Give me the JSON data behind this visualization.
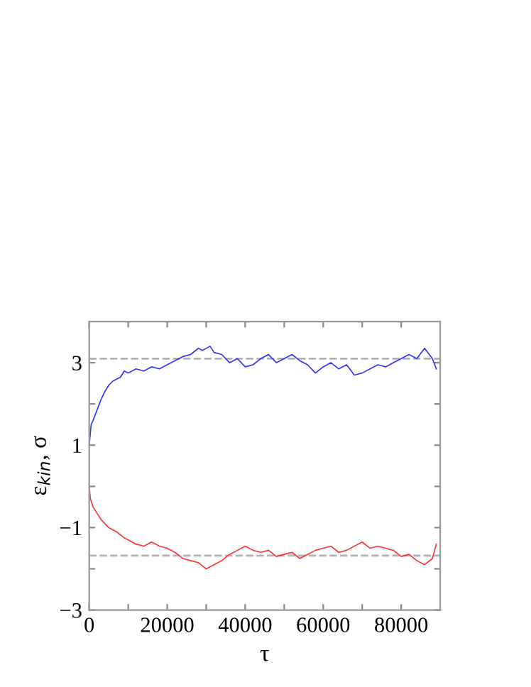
{
  "chart_data": {
    "type": "line",
    "xlabel": "τ",
    "ylabel": "ε$_{kin}$, σ",
    "xlim": [
      0,
      90000
    ],
    "ylim": [
      -3,
      4
    ],
    "xticks": [
      0,
      {
        "value": 10000,
        "label": null
      },
      20000,
      {
        "value": 30000,
        "label": null
      },
      40000,
      {
        "value": 50000,
        "label": null
      },
      60000,
      {
        "value": 70000,
        "label": null
      },
      80000
    ],
    "yticks": [
      {
        "value": -3,
        "label": "−3"
      },
      {
        "value": -2,
        "label": null
      },
      {
        "value": -1,
        "label": "−1"
      },
      {
        "value": 0,
        "label": null
      },
      1,
      {
        "value": 2,
        "label": null
      },
      3
    ],
    "grid": false,
    "line_style": "solid",
    "marker": "none",
    "ref_lines": [
      {
        "axis": "y",
        "value": 3.1,
        "color": "#b0b0b0",
        "line_style": "dashed"
      },
      {
        "axis": "y",
        "value": -1.68,
        "color": "#b0b0b0",
        "line_style": "dashed"
      }
    ],
    "series": [
      {
        "color": "#3333ff",
        "x": [
          0,
          500,
          1000,
          2000,
          3000,
          4000,
          5000,
          6000,
          7000,
          8000,
          9000,
          10000,
          12000,
          14000,
          16000,
          18000,
          20000,
          22000,
          24000,
          26000,
          28000,
          29000,
          31000,
          32000,
          34000,
          36000,
          38000,
          40000,
          42000,
          44000,
          46000,
          48000,
          50000,
          52000,
          54000,
          56000,
          58000,
          60000,
          62000,
          64000,
          66000,
          68000,
          70000,
          72000,
          74000,
          76000,
          78000,
          80000,
          82000,
          84000,
          86000,
          88000,
          89000
        ],
        "values": [
          1.0,
          1.5,
          1.6,
          1.85,
          2.1,
          2.3,
          2.45,
          2.55,
          2.6,
          2.65,
          2.8,
          2.75,
          2.85,
          2.8,
          2.9,
          2.85,
          2.95,
          3.05,
          3.15,
          3.2,
          3.35,
          3.3,
          3.4,
          3.25,
          3.2,
          3.0,
          3.1,
          2.9,
          2.95,
          3.1,
          3.2,
          3.0,
          3.1,
          3.2,
          3.05,
          2.95,
          2.75,
          2.9,
          3.0,
          2.85,
          2.95,
          2.7,
          2.75,
          2.85,
          2.95,
          2.9,
          3.0,
          3.1,
          3.2,
          3.1,
          3.35,
          3.1,
          2.85
        ]
      },
      {
        "color": "#ff3333",
        "x": [
          0,
          300,
          1000,
          2000,
          3000,
          4000,
          5000,
          7000,
          9000,
          10000,
          12000,
          14000,
          16000,
          18000,
          20000,
          22000,
          24000,
          26000,
          28000,
          30000,
          32000,
          34000,
          36000,
          38000,
          40000,
          42000,
          44000,
          46000,
          48000,
          50000,
          52000,
          54000,
          56000,
          58000,
          60000,
          62000,
          64000,
          66000,
          68000,
          70000,
          72000,
          74000,
          76000,
          78000,
          80000,
          82000,
          84000,
          86000,
          88000,
          89000
        ],
        "values": [
          0.0,
          -0.3,
          -0.5,
          -0.65,
          -0.8,
          -0.9,
          -1.0,
          -1.1,
          -1.25,
          -1.3,
          -1.4,
          -1.45,
          -1.35,
          -1.45,
          -1.5,
          -1.6,
          -1.75,
          -1.8,
          -1.85,
          -2.0,
          -1.9,
          -1.8,
          -1.65,
          -1.55,
          -1.45,
          -1.55,
          -1.6,
          -1.55,
          -1.7,
          -1.65,
          -1.6,
          -1.75,
          -1.65,
          -1.55,
          -1.5,
          -1.45,
          -1.6,
          -1.55,
          -1.45,
          -1.35,
          -1.5,
          -1.45,
          -1.5,
          -1.55,
          -1.7,
          -1.65,
          -1.8,
          -1.9,
          -1.75,
          -1.4
        ]
      }
    ]
  }
}
